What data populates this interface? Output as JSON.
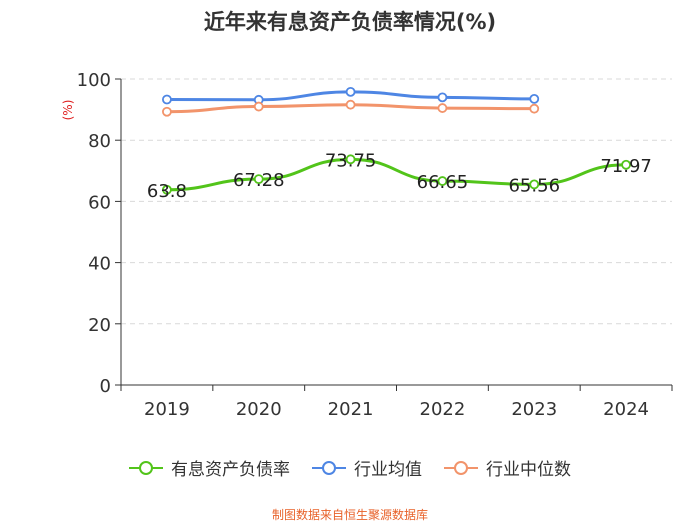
{
  "chart_data": {
    "type": "line",
    "title": "近年来有息资产负债率情况(%)",
    "ylabel": "(%)",
    "xlabel": "",
    "categories": [
      "2019",
      "2020",
      "2021",
      "2022",
      "2023",
      "2024"
    ],
    "ylim": [
      0,
      100
    ],
    "yticks": [
      0,
      20,
      40,
      60,
      80,
      100
    ],
    "grid": true,
    "legend_position": "bottom",
    "series": [
      {
        "name": "有息资产负债率",
        "color": "#52c41a",
        "values": [
          63.8,
          67.28,
          73.75,
          66.65,
          65.56,
          71.97
        ],
        "labels": [
          "63.8",
          "67.28",
          "73.75",
          "66.65",
          "65.56",
          "71.97"
        ]
      },
      {
        "name": "行业均值",
        "color": "#4e86e4",
        "values": [
          93.3,
          93.2,
          95.8,
          94.0,
          93.5,
          null
        ]
      },
      {
        "name": "行业中位数",
        "color": "#f2946b",
        "values": [
          89.3,
          91.0,
          91.6,
          90.5,
          90.3,
          null
        ]
      }
    ]
  },
  "source": {
    "text": "制图数据来自恒生聚源数据库",
    "color": "#e8622a"
  },
  "colors": {
    "axis": "#333333",
    "grid": "#d9d9d9",
    "ylabel": "#e02020"
  }
}
